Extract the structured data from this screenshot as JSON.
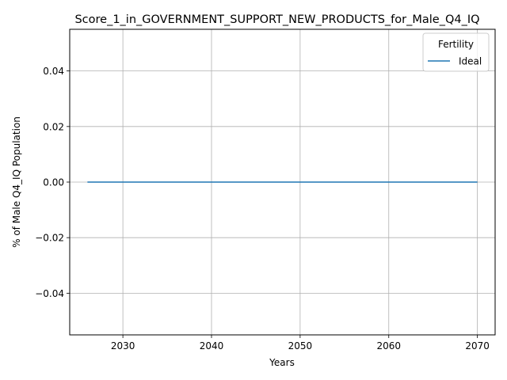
{
  "chart_data": {
    "type": "line",
    "title": "Score_1_in_GOVERNMENT_SUPPORT_NEW_PRODUCTS_for_Male_Q4_IQ",
    "xlabel": "Years",
    "ylabel": "% of Male Q4_IQ Population",
    "xlim": [
      2024,
      2072
    ],
    "ylim": [
      -0.055,
      0.055
    ],
    "xticks": [
      2030,
      2040,
      2050,
      2060,
      2070
    ],
    "yticks": [
      -0.04,
      -0.02,
      0.0,
      0.02,
      0.04
    ],
    "ytick_labels": [
      "−0.04",
      "−0.02",
      "0.00",
      "0.02",
      "0.04"
    ],
    "grid": true,
    "legend": {
      "title": "Fertility",
      "placement": "top-right"
    },
    "series": [
      {
        "name": "Ideal",
        "color": "#1f77b4",
        "x": [
          2026,
          2070
        ],
        "y": [
          0,
          0
        ]
      }
    ]
  }
}
